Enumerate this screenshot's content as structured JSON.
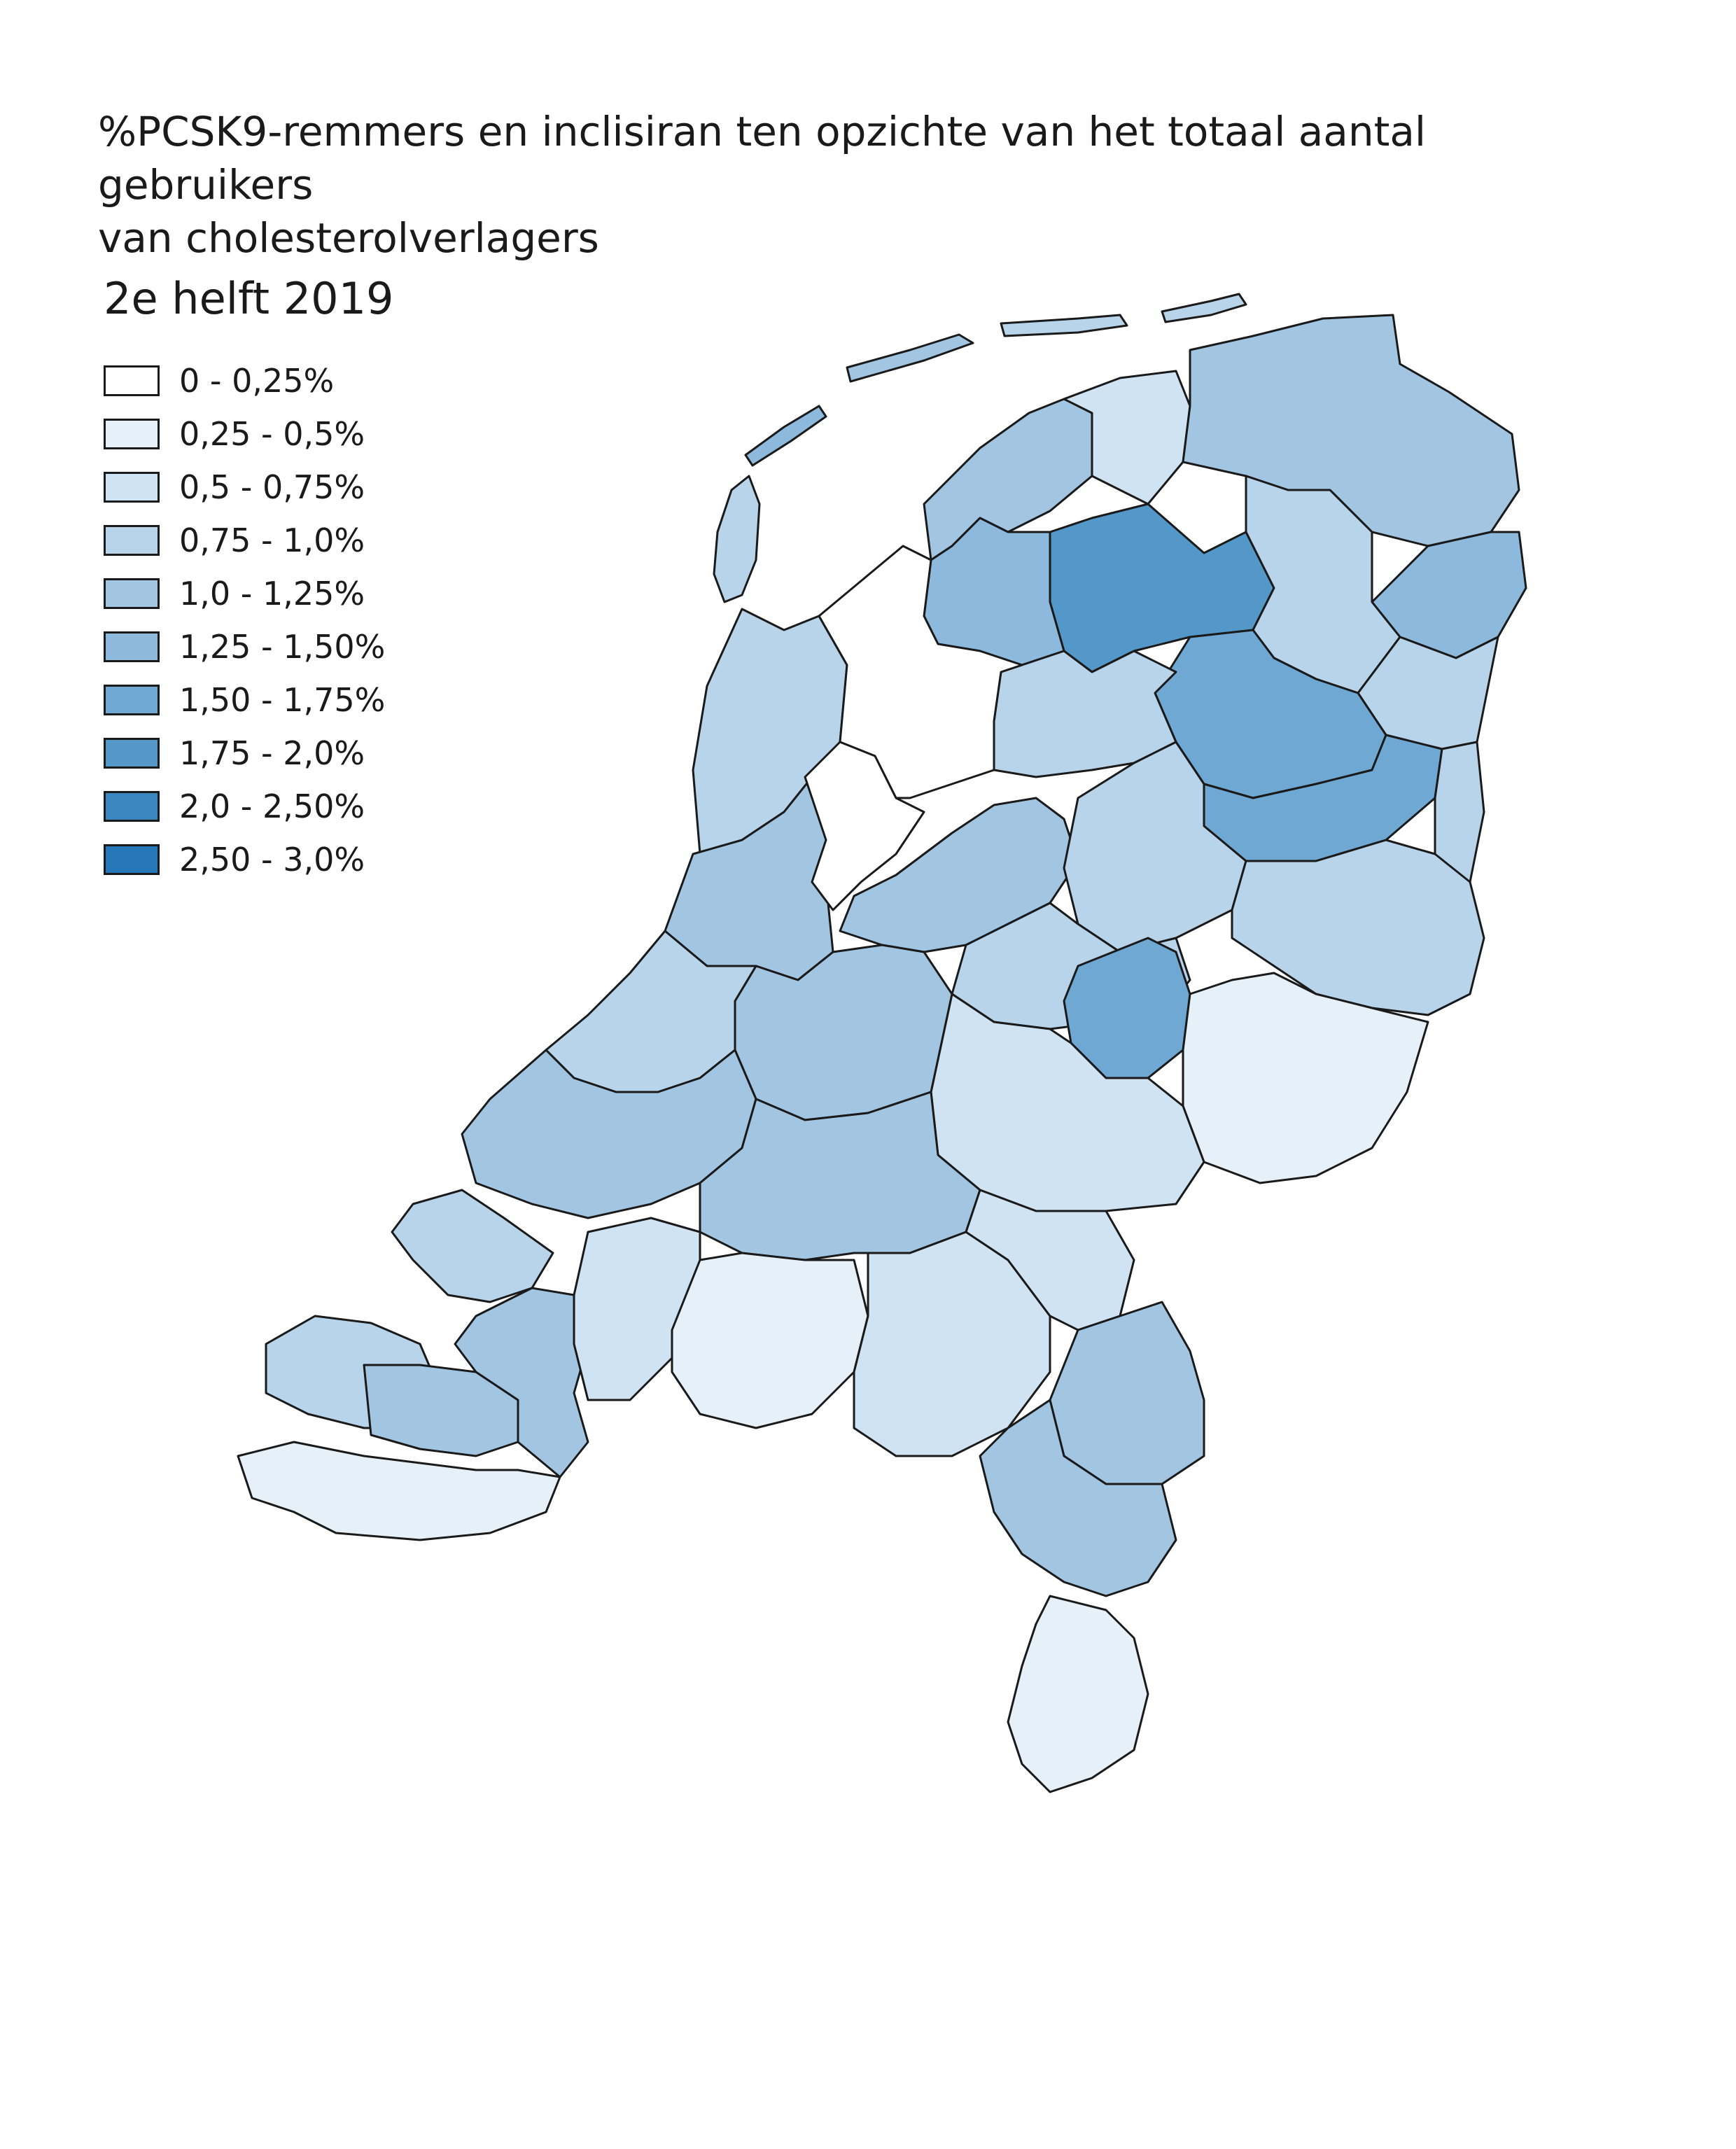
{
  "title": {
    "line1": "%PCSK9-remmers en inclisiran ten opzichte van het totaal aantal gebruikers",
    "line2": "van cholesterolverlagers"
  },
  "legend": {
    "title": "2e helft 2019",
    "classes": [
      {
        "label": "0 - 0,25%",
        "color": "#ffffff"
      },
      {
        "label": "0,25 - 0,5%",
        "color": "#e6f0f8"
      },
      {
        "label": "0,5 - 0,75%",
        "color": "#d0e3f2"
      },
      {
        "label": "0,75 - 1,0%",
        "color": "#b8d4ea"
      },
      {
        "label": "1,0 - 1,25%",
        "color": "#a2c6e2"
      },
      {
        "label": "1,25 - 1,50%",
        "color": "#8cb9dc"
      },
      {
        "label": "1,50 - 1,75%",
        "color": "#6ea8d3"
      },
      {
        "label": "1,75 - 2,0%",
        "color": "#5497c9"
      },
      {
        "label": "2,0 - 2,50%",
        "color": "#3d87c1"
      },
      {
        "label": "2,50 - 3,0%",
        "color": "#2577b8"
      }
    ]
  },
  "map": {
    "regions": [
      {
        "id": "friesland-west",
        "class": 4
      },
      {
        "id": "friesland-noord",
        "class": 2
      },
      {
        "id": "friesland-midden",
        "class": 7
      },
      {
        "id": "friesland-zuidwest",
        "class": 5
      },
      {
        "id": "groningen-noord",
        "class": 4
      },
      {
        "id": "groningen-oost",
        "class": 5
      },
      {
        "id": "groningen-stad",
        "class": 3
      },
      {
        "id": "drenthe-noord",
        "class": 3
      },
      {
        "id": "drenthe-midden",
        "class": 6
      },
      {
        "id": "drenthe-zuid",
        "class": 6
      },
      {
        "id": "drenthe-oost",
        "class": 3
      },
      {
        "id": "noord-holland-noord",
        "class": 3
      },
      {
        "id": "noord-holland-zuid",
        "class": 4
      },
      {
        "id": "flevoland",
        "class": 4
      },
      {
        "id": "overijssel-noord",
        "class": 3
      },
      {
        "id": "overijssel-twente",
        "class": 3
      },
      {
        "id": "gelderland-noord",
        "class": 3
      },
      {
        "id": "gelderland-midden",
        "class": 6
      },
      {
        "id": "gelderland-oost",
        "class": 1
      },
      {
        "id": "utrecht",
        "class": 4
      },
      {
        "id": "zuid-holland-noord",
        "class": 3
      },
      {
        "id": "zuid-holland-zuid",
        "class": 4
      },
      {
        "id": "rivierenland",
        "class": 4
      },
      {
        "id": "zeeland-noord",
        "class": 3
      },
      {
        "id": "zeeland-midden",
        "class": 3
      },
      {
        "id": "zeeland-vlaanderen",
        "class": 1
      },
      {
        "id": "brabant-west",
        "class": 4
      },
      {
        "id": "brabant-midden",
        "class": 1
      },
      {
        "id": "brabant-oost",
        "class": 2
      },
      {
        "id": "limburg-noord",
        "class": 4
      },
      {
        "id": "limburg-midden",
        "class": 4
      },
      {
        "id": "limburg-zuid",
        "class": 2
      }
    ]
  }
}
